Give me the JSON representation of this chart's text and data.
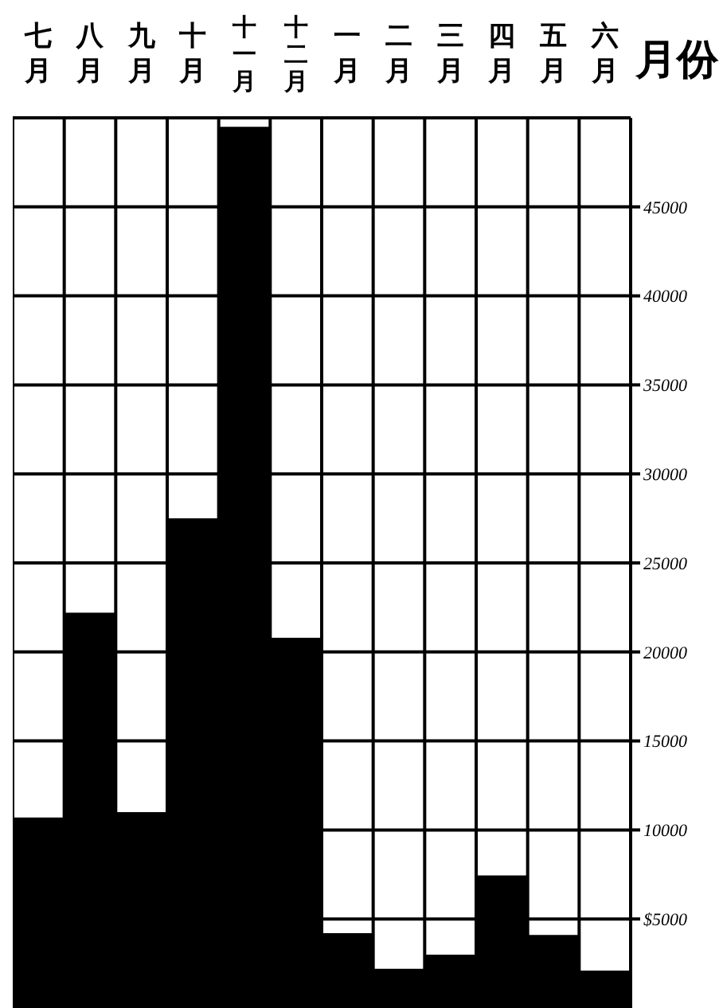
{
  "chart_data": {
    "type": "bar",
    "xlabel": "月份",
    "categories": [
      "七月",
      "八月",
      "九月",
      "十月",
      "十一月",
      "十二月",
      "一月",
      "二月",
      "三月",
      "四月",
      "五月",
      "六月"
    ],
    "values": [
      10700,
      22200,
      11000,
      27500,
      49500,
      20800,
      4200,
      2200,
      3000,
      7450,
      4100,
      2100
    ],
    "color": "#000000",
    "ylim": [
      0,
      50000
    ],
    "yticks": [
      {
        "value": 5000,
        "label": "$5000"
      },
      10000,
      15000,
      20000,
      25000,
      30000,
      35000,
      40000,
      45000
    ],
    "grid": true
  }
}
